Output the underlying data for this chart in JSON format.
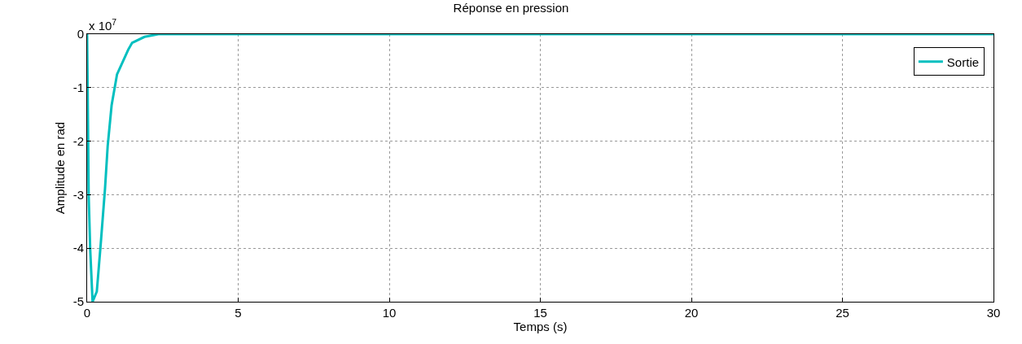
{
  "chart_data": {
    "type": "line",
    "title": "Réponse en pression",
    "xlabel": "Temps (s)",
    "ylabel": "Amplitude en rad",
    "annotations": [
      "x 10$^{7}$"
    ],
    "x": [
      0,
      0.05,
      0.1,
      0.18,
      0.32,
      0.45,
      0.59,
      0.68,
      0.81,
      0.99,
      1.36,
      1.49,
      1.9,
      2.36,
      30
    ],
    "series": [
      {
        "name": "Sortie",
        "color": "#00bfbf",
        "values": [
          0,
          -3.0,
          -4.0,
          -5.0,
          -4.81,
          -3.92,
          -2.9,
          -2.09,
          -1.33,
          -0.75,
          -0.29,
          -0.16,
          -0.05,
          0,
          0
        ]
      }
    ],
    "xlim": [
      0,
      30
    ],
    "xticks": [
      0,
      5,
      10,
      15,
      20,
      25,
      30
    ],
    "ylim": [
      -5,
      0
    ],
    "yticks": [
      -5,
      -4,
      -3,
      -2,
      -1,
      0
    ],
    "grid": true,
    "legend": "top right",
    "marker": "none",
    "line_style": "solid"
  }
}
